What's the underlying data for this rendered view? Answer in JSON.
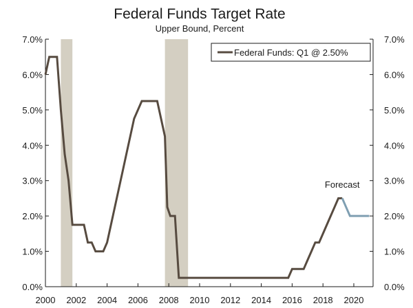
{
  "chart_data": {
    "type": "line",
    "title": "Federal Funds Target Rate",
    "subtitle": "Upper Bound, Percent",
    "xlabel": "",
    "ylabel": "",
    "xlim": [
      2000,
      2021.25
    ],
    "ylim": [
      0,
      7
    ],
    "x_ticks": [
      2000,
      2002,
      2004,
      2006,
      2008,
      2010,
      2012,
      2014,
      2016,
      2018,
      2020
    ],
    "x_tick_labels": [
      "2000",
      "2002",
      "2004",
      "2006",
      "2008",
      "2010",
      "2012",
      "2014",
      "2016",
      "2018",
      "2020"
    ],
    "y_ticks": [
      0,
      1,
      2,
      3,
      4,
      5,
      6,
      7
    ],
    "y_tick_labels": [
      "0.0%",
      "1.0%",
      "2.0%",
      "3.0%",
      "4.0%",
      "5.0%",
      "6.0%",
      "7.0%"
    ],
    "grid": false,
    "legend": {
      "position": "top-right",
      "entries": [
        "Federal Funds: Q1 @ 2.50%"
      ]
    },
    "recessions": [
      {
        "start": 2001.0,
        "end": 2001.75
      },
      {
        "start": 2007.75,
        "end": 2009.25
      }
    ],
    "series": [
      {
        "name": "Federal Funds: Q1 @ 2.50%",
        "color": "#574b40",
        "points": [
          [
            2000.0,
            6.0
          ],
          [
            2000.25,
            6.5
          ],
          [
            2000.5,
            6.5
          ],
          [
            2000.75,
            6.5
          ],
          [
            2001.0,
            5.0
          ],
          [
            2001.25,
            3.75
          ],
          [
            2001.5,
            3.0
          ],
          [
            2001.75,
            1.75
          ],
          [
            2002.0,
            1.75
          ],
          [
            2002.25,
            1.75
          ],
          [
            2002.5,
            1.75
          ],
          [
            2002.75,
            1.25
          ],
          [
            2003.0,
            1.25
          ],
          [
            2003.25,
            1.0
          ],
          [
            2003.5,
            1.0
          ],
          [
            2003.75,
            1.0
          ],
          [
            2004.0,
            1.25
          ],
          [
            2004.25,
            1.75
          ],
          [
            2004.5,
            2.25
          ],
          [
            2004.75,
            2.75
          ],
          [
            2005.0,
            3.25
          ],
          [
            2005.25,
            3.75
          ],
          [
            2005.5,
            4.25
          ],
          [
            2005.75,
            4.75
          ],
          [
            2006.25,
            5.25
          ],
          [
            2006.5,
            5.25
          ],
          [
            2006.75,
            5.25
          ],
          [
            2007.0,
            5.25
          ],
          [
            2007.25,
            5.25
          ],
          [
            2007.75,
            4.25
          ],
          [
            2007.9,
            2.25
          ],
          [
            2008.1,
            2.0
          ],
          [
            2008.4,
            2.0
          ],
          [
            2008.65,
            0.25
          ],
          [
            2009.0,
            0.25
          ],
          [
            2010.0,
            0.25
          ],
          [
            2012.0,
            0.25
          ],
          [
            2014.0,
            0.25
          ],
          [
            2015.75,
            0.25
          ],
          [
            2016.0,
            0.5
          ],
          [
            2016.25,
            0.5
          ],
          [
            2016.75,
            0.5
          ],
          [
            2017.0,
            0.75
          ],
          [
            2017.25,
            1.0
          ],
          [
            2017.5,
            1.25
          ],
          [
            2017.75,
            1.25
          ],
          [
            2018.0,
            1.5
          ],
          [
            2018.25,
            1.75
          ],
          [
            2018.5,
            2.0
          ],
          [
            2018.75,
            2.25
          ],
          [
            2019.0,
            2.5
          ],
          [
            2019.25,
            2.5
          ]
        ]
      },
      {
        "name": "",
        "color": "#7f9fb2",
        "points": [
          [
            2019.25,
            2.5
          ],
          [
            2019.5,
            2.25
          ],
          [
            2019.75,
            2.0
          ],
          [
            2020.0,
            2.0
          ],
          [
            2020.5,
            2.0
          ],
          [
            2021.0,
            2.0
          ]
        ]
      }
    ],
    "annotations": [
      {
        "text": "Forecast",
        "x": 2019.25,
        "y": 2.8
      }
    ],
    "recession_color": "#d4cfc2"
  }
}
